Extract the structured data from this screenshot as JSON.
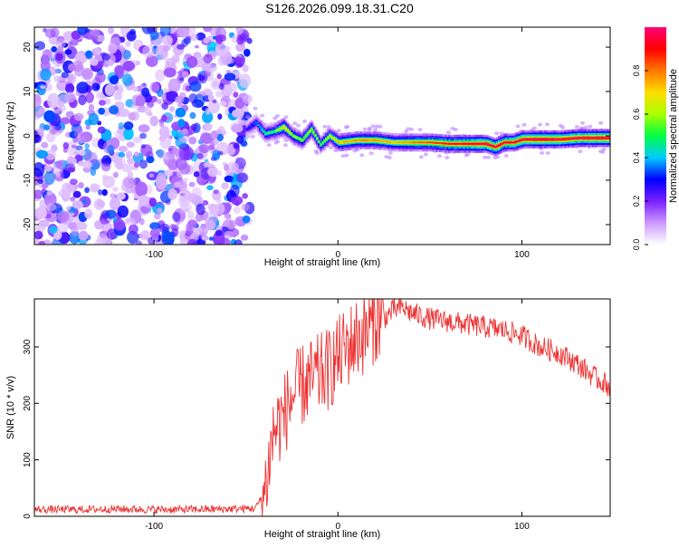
{
  "page_title": "S126.2026.099.18.31.C20",
  "chart_data": [
    {
      "type": "heatmap",
      "title": "S126.2026.099.18.31.C20",
      "xlabel": "Height of straight line (km)",
      "ylabel": "Frequency (Hz)",
      "xlim": [
        -165,
        148
      ],
      "ylim": [
        -24.5,
        24.5
      ],
      "x_ticks": [
        -100,
        0,
        100
      ],
      "y_ticks": [
        -20,
        -10,
        0,
        10,
        20
      ],
      "noise_region_x": [
        -165,
        -48
      ],
      "signal_track": {
        "x": [
          -50,
          -45,
          -40,
          -35,
          -30,
          -25,
          -20,
          -15,
          -10,
          -5,
          0,
          10,
          20,
          30,
          40,
          50,
          60,
          70,
          80,
          85,
          90,
          95,
          100,
          110,
          120,
          130,
          148
        ],
        "freq": [
          1.5,
          3,
          0.5,
          1,
          2,
          0,
          -1,
          1.5,
          -2,
          0,
          -1.5,
          -1,
          -1,
          -1.5,
          -1.5,
          -1.5,
          -1.8,
          -1.8,
          -1.8,
          -2.5,
          -1.5,
          -1.5,
          -0.8,
          -0.8,
          -0.8,
          -0.5,
          -0.5
        ],
        "amplitude": [
          0.25,
          0.35,
          0.45,
          0.5,
          0.7,
          0.55,
          0.55,
          0.6,
          0.5,
          0.6,
          0.7,
          0.75,
          0.75,
          0.7,
          0.75,
          0.8,
          0.85,
          0.9,
          0.95,
          0.95,
          0.9,
          0.9,
          0.95,
          1.0,
          0.95,
          0.95,
          1.0
        ]
      },
      "colorbar": {
        "label": "Normalized spectral amplitude",
        "range": [
          0,
          1
        ],
        "ticks": [
          "0.0",
          "0.2",
          "0.4",
          "0.6",
          "0.8"
        ],
        "colors": [
          "#ffffff",
          "#cc99ff",
          "#7a1fff",
          "#0000ff",
          "#00ccff",
          "#00ff44",
          "#aaff00",
          "#ffdd00",
          "#ff7700",
          "#ff0000",
          "#ff0077"
        ]
      }
    },
    {
      "type": "line",
      "xlabel": "Height of straight line (km)",
      "ylabel": "SNR (10 * v/v)",
      "xlim": [
        -165,
        148
      ],
      "ylim": [
        0,
        385
      ],
      "x_ticks": [
        -100,
        0,
        100
      ],
      "y_ticks": [
        0,
        100,
        200,
        300
      ],
      "series": [
        {
          "name": "SNR",
          "color": "#ee3333",
          "x": [
            -165,
            -140,
            -120,
            -100,
            -80,
            -60,
            -45,
            -40,
            -35,
            -30,
            -25,
            -20,
            -15,
            -10,
            -5,
            0,
            5,
            10,
            15,
            20,
            25,
            30,
            35,
            40,
            50,
            60,
            70,
            80,
            90,
            100,
            110,
            120,
            130,
            140,
            148
          ],
          "values": [
            12,
            12,
            13,
            12,
            12,
            13,
            14,
            40,
            150,
            175,
            210,
            230,
            240,
            250,
            260,
            280,
            300,
            315,
            325,
            345,
            350,
            365,
            370,
            360,
            350,
            345,
            340,
            335,
            330,
            320,
            300,
            290,
            270,
            245,
            230
          ]
        }
      ]
    }
  ]
}
